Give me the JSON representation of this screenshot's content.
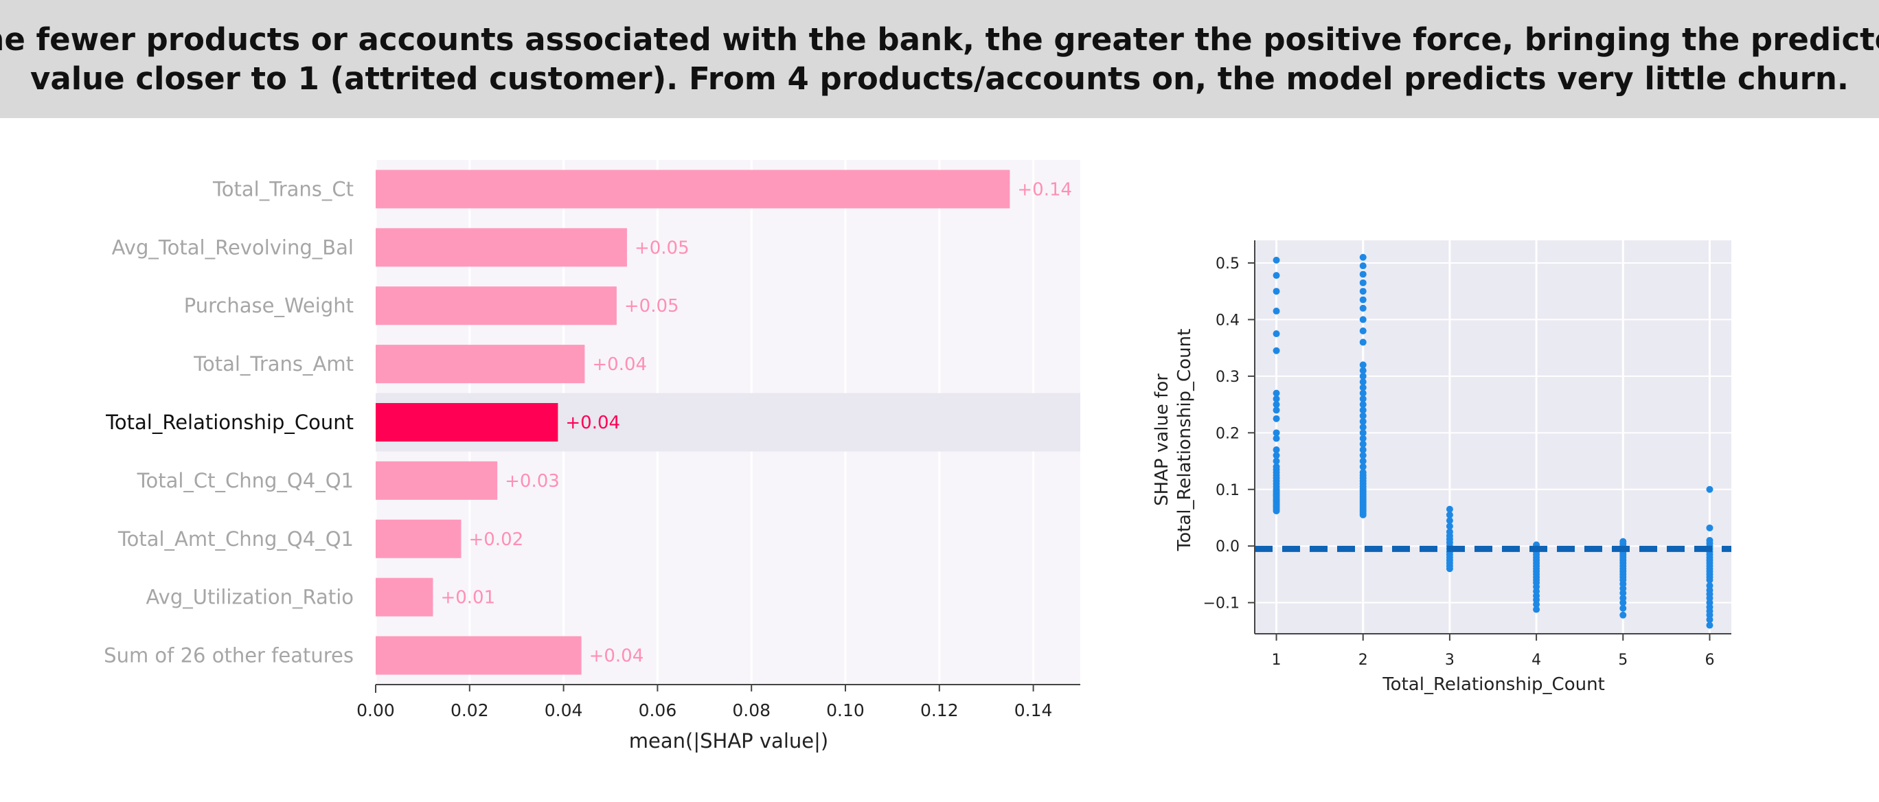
{
  "header": {
    "line1": "The fewer products or accounts associated with the bank, the greater the positive force, bringing the predicted",
    "line2": "value closer to 1 (attrited customer). From 4 products/accounts on, the model predicts very little churn."
  },
  "colors": {
    "bar": "#ff99bb",
    "bar_highlight": "#ff0055",
    "bar_label": "#ff8fb4",
    "dim_label": "#a6a6a6",
    "highlight_label": "#111111",
    "plot_bg": "#f7f5fa",
    "row_highlight": "#e9e7ef",
    "scatter_bg": "#eaeaf2",
    "point": "#1e88e5",
    "zero_line": "#0d63b5"
  },
  "chart_data": [
    {
      "type": "bar",
      "orientation": "horizontal",
      "categories": [
        "Total_Trans_Ct",
        "Avg_Total_Revolving_Bal",
        "Purchase_Weight",
        "Total_Trans_Amt",
        "Total_Relationship_Count",
        "Total_Ct_Chng_Q4_Q1",
        "Total_Amt_Chng_Q4_Q1",
        "Avg_Utilization_Ratio",
        "Sum of 26 other features"
      ],
      "values": [
        0.135,
        0.0535,
        0.0513,
        0.0445,
        0.0388,
        0.0259,
        0.0182,
        0.0122,
        0.0438
      ],
      "data_labels": [
        "+0.14",
        "+0.05",
        "+0.05",
        "+0.04",
        "+0.04",
        "+0.03",
        "+0.02",
        "+0.01",
        "+0.04"
      ],
      "highlight": "Total_Relationship_Count",
      "xlabel": "mean(|SHAP value|)",
      "xlim": [
        0,
        0.15
      ],
      "xticks": [
        0,
        0.02,
        0.04,
        0.06,
        0.08,
        0.1,
        0.12,
        0.14
      ],
      "xtick_labels": [
        "0.00",
        "0.02",
        "0.04",
        "0.06",
        "0.08",
        "0.10",
        "0.12",
        "0.14"
      ],
      "grid": "vertical"
    },
    {
      "type": "scatter",
      "xlabel": "Total_Relationship_Count",
      "ylabel": "SHAP value for\nTotal_Relationship_Count",
      "xlim": [
        0.75,
        6.25
      ],
      "ylim": [
        -0.155,
        0.54
      ],
      "xticks": [
        1,
        2,
        3,
        4,
        5,
        6
      ],
      "xtick_labels": [
        "1",
        "2",
        "3",
        "4",
        "5",
        "6"
      ],
      "yticks": [
        -0.1,
        0,
        0.1,
        0.2,
        0.3,
        0.4,
        0.5
      ],
      "ytick_labels": [
        "−0.1",
        "0.0",
        "0.1",
        "0.2",
        "0.3",
        "0.4",
        "0.5"
      ],
      "reference_line": {
        "y": -0.005,
        "style": "dashed"
      },
      "grid": true,
      "points": [
        {
          "x": 1,
          "y": [
            0.505,
            0.478,
            0.45,
            0.415,
            0.375,
            0.345,
            0.27,
            0.26,
            0.25,
            0.24,
            0.225,
            0.2,
            0.19,
            0.17,
            0.16,
            0.15,
            0.14,
            0.135,
            0.13,
            0.125,
            0.12,
            0.115,
            0.11,
            0.105,
            0.1,
            0.098,
            0.095,
            0.092,
            0.09,
            0.088,
            0.085,
            0.082,
            0.08,
            0.078,
            0.075,
            0.072,
            0.07,
            0.068,
            0.065,
            0.062
          ]
        },
        {
          "x": 2,
          "y": [
            0.51,
            0.495,
            0.48,
            0.465,
            0.45,
            0.435,
            0.42,
            0.4,
            0.38,
            0.36,
            0.32,
            0.31,
            0.3,
            0.29,
            0.28,
            0.27,
            0.26,
            0.25,
            0.24,
            0.23,
            0.22,
            0.21,
            0.2,
            0.19,
            0.18,
            0.17,
            0.16,
            0.15,
            0.14,
            0.13,
            0.125,
            0.12,
            0.115,
            0.11,
            0.105,
            0.1,
            0.097,
            0.094,
            0.091,
            0.088,
            0.085,
            0.082,
            0.079,
            0.076,
            0.073,
            0.07,
            0.067,
            0.064,
            0.061,
            0.058,
            0.055
          ]
        },
        {
          "x": 3,
          "y": [
            0.065,
            0.055,
            0.045,
            0.035,
            0.025,
            0.018,
            0.012,
            0.006,
            0.0,
            -0.005,
            -0.01,
            -0.015,
            -0.02,
            -0.025,
            -0.03,
            -0.035,
            -0.04
          ]
        },
        {
          "x": 4,
          "y": [
            0.002,
            -0.002,
            -0.006,
            -0.01,
            -0.015,
            -0.02,
            -0.025,
            -0.03,
            -0.035,
            -0.04,
            -0.045,
            -0.05,
            -0.055,
            -0.06,
            -0.065,
            -0.072,
            -0.08,
            -0.088,
            -0.095,
            -0.103,
            -0.112
          ]
        },
        {
          "x": 5,
          "y": [
            0.008,
            0.004,
            0.0,
            -0.004,
            -0.008,
            -0.012,
            -0.016,
            -0.02,
            -0.025,
            -0.03,
            -0.035,
            -0.04,
            -0.045,
            -0.05,
            -0.055,
            -0.06,
            -0.067,
            -0.075,
            -0.083,
            -0.092,
            -0.1,
            -0.11,
            -0.122
          ]
        },
        {
          "x": 6,
          "y": [
            0.1,
            0.032,
            0.01,
            0.005,
            0.0,
            -0.005,
            -0.01,
            -0.015,
            -0.02,
            -0.025,
            -0.03,
            -0.035,
            -0.04,
            -0.045,
            -0.05,
            -0.055,
            -0.06,
            -0.07,
            -0.078,
            -0.085,
            -0.092,
            -0.1,
            -0.108,
            -0.115,
            -0.122,
            -0.13,
            -0.14
          ]
        }
      ]
    }
  ]
}
